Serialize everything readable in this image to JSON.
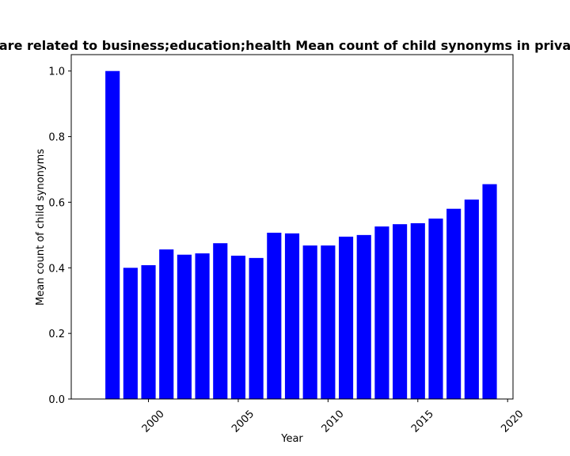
{
  "chart_data": {
    "type": "bar",
    "title": "are related to business;education;health Mean count of child synonyms in priva",
    "xlabel": "Year",
    "ylabel": "Mean count of child synonyms",
    "x": [
      1998,
      1999,
      2000,
      2001,
      2002,
      2003,
      2004,
      2005,
      2006,
      2007,
      2008,
      2009,
      2010,
      2011,
      2012,
      2013,
      2014,
      2015,
      2016,
      2017,
      2018,
      2019
    ],
    "values": [
      1.0,
      0.4,
      0.408,
      0.456,
      0.44,
      0.444,
      0.475,
      0.437,
      0.43,
      0.507,
      0.505,
      0.468,
      0.468,
      0.495,
      0.5,
      0.526,
      0.533,
      0.536,
      0.55,
      0.58,
      0.608,
      0.655
    ],
    "xlim": [
      1995.7,
      2020.3
    ],
    "ylim": [
      0,
      1.05
    ],
    "xticks": [
      2000,
      2005,
      2010,
      2015,
      2020
    ],
    "xtick_labels": [
      "2000",
      "2005",
      "2010",
      "2015",
      "2020"
    ],
    "yticks": [
      0.0,
      0.2,
      0.4,
      0.6,
      0.8,
      1.0
    ],
    "ytick_labels": [
      "0.0",
      "0.2",
      "0.4",
      "0.6",
      "0.8",
      "1.0"
    ],
    "bar_color": "#0000ff",
    "grid": false,
    "legend": "none"
  }
}
